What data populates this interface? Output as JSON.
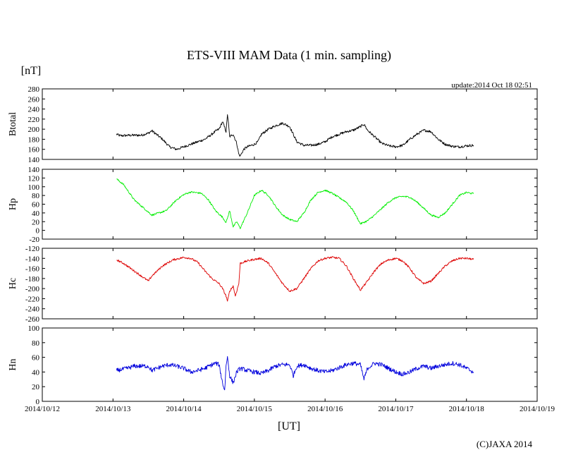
{
  "title": "ETS-VIII MAM Data (1 min. sampling)",
  "unit_label": "[nT]",
  "update_text": "update:2014 Oct 18 02:51",
  "xlabel": "[UT]",
  "copyright": "(C)JAXA 2014",
  "chart_data": [
    {
      "type": "line",
      "ylabel": "Btotal",
      "color": "#000000",
      "ylim": [
        140,
        280
      ],
      "yticks": [
        140,
        160,
        180,
        200,
        220,
        240,
        260,
        280
      ],
      "xlim": [
        0,
        7
      ],
      "xtick_labels": [
        "2014/10/12",
        "2014/10/13",
        "2014/10/14",
        "2014/10/15",
        "2014/10/16",
        "2014/10/17",
        "2014/10/18",
        "2014/10/19"
      ],
      "noise": 2.5,
      "x": [
        1.05,
        1.1,
        1.25,
        1.4,
        1.5,
        1.55,
        1.7,
        1.8,
        1.9,
        2.0,
        2.1,
        2.2,
        2.3,
        2.4,
        2.45,
        2.5,
        2.55,
        2.6,
        2.62,
        2.65,
        2.7,
        2.75,
        2.78,
        2.8,
        2.85,
        2.9,
        3.0,
        3.05,
        3.1,
        3.2,
        3.3,
        3.4,
        3.5,
        3.6,
        3.7,
        3.8,
        3.9,
        4.0,
        4.1,
        4.2,
        4.3,
        4.4,
        4.5,
        4.55,
        4.6,
        4.7,
        4.8,
        4.9,
        5.0,
        5.1,
        5.2,
        5.3,
        5.4,
        5.5,
        5.6,
        5.7,
        5.8,
        5.9,
        6.0,
        6.1
      ],
      "values": [
        190,
        187,
        188,
        188,
        192,
        197,
        180,
        165,
        160,
        165,
        170,
        175,
        180,
        190,
        196,
        200,
        215,
        195,
        230,
        185,
        190,
        172,
        150,
        147,
        160,
        165,
        170,
        175,
        190,
        200,
        207,
        212,
        205,
        175,
        168,
        168,
        170,
        175,
        185,
        190,
        195,
        198,
        205,
        210,
        198,
        185,
        172,
        167,
        165,
        168,
        180,
        190,
        198,
        195,
        180,
        170,
        166,
        165,
        167,
        168
      ]
    },
    {
      "type": "line",
      "ylabel": "Hp",
      "color": "#00ee00",
      "ylim": [
        -20,
        140
      ],
      "yticks": [
        -20,
        0,
        20,
        40,
        60,
        80,
        100,
        120,
        140
      ],
      "xlim": [
        0,
        7
      ],
      "noise": 2,
      "x": [
        1.05,
        1.15,
        1.3,
        1.5,
        1.55,
        1.75,
        1.9,
        2.0,
        2.1,
        2.25,
        2.35,
        2.45,
        2.55,
        2.6,
        2.65,
        2.7,
        2.75,
        2.8,
        2.9,
        3.0,
        3.1,
        3.2,
        3.3,
        3.4,
        3.5,
        3.6,
        3.7,
        3.8,
        3.9,
        4.0,
        4.1,
        4.2,
        4.3,
        4.4,
        4.5,
        4.6,
        4.7,
        4.8,
        4.9,
        5.0,
        5.1,
        5.2,
        5.3,
        5.4,
        5.5,
        5.6,
        5.7,
        5.8,
        5.9,
        6.0,
        6.1
      ],
      "values": [
        118,
        105,
        70,
        42,
        35,
        45,
        70,
        82,
        88,
        85,
        70,
        45,
        30,
        18,
        45,
        8,
        20,
        5,
        40,
        80,
        92,
        80,
        55,
        35,
        25,
        20,
        40,
        70,
        87,
        92,
        85,
        75,
        65,
        45,
        15,
        22,
        35,
        50,
        65,
        75,
        78,
        76,
        65,
        50,
        35,
        30,
        40,
        60,
        80,
        87,
        84
      ]
    },
    {
      "type": "line",
      "ylabel": "Hc",
      "color": "#dd0000",
      "ylim": [
        -260,
        -120
      ],
      "yticks": [
        -260,
        -240,
        -220,
        -200,
        -180,
        -160,
        -140,
        -120
      ],
      "xlim": [
        0,
        7
      ],
      "noise": 2,
      "x": [
        1.05,
        1.15,
        1.3,
        1.45,
        1.5,
        1.55,
        1.7,
        1.85,
        2.0,
        2.1,
        2.2,
        2.3,
        2.4,
        2.5,
        2.55,
        2.6,
        2.62,
        2.65,
        2.7,
        2.73,
        2.78,
        2.8,
        2.9,
        3.0,
        3.1,
        3.2,
        3.3,
        3.4,
        3.5,
        3.6,
        3.7,
        3.8,
        3.9,
        4.0,
        4.1,
        4.2,
        4.3,
        4.4,
        4.5,
        4.6,
        4.7,
        4.8,
        4.9,
        5.0,
        5.1,
        5.2,
        5.3,
        5.4,
        5.5,
        5.6,
        5.7,
        5.8,
        5.9,
        6.0,
        6.1
      ],
      "values": [
        -143,
        -150,
        -165,
        -180,
        -185,
        -175,
        -155,
        -143,
        -138,
        -140,
        -148,
        -165,
        -180,
        -190,
        -200,
        -215,
        -225,
        -205,
        -195,
        -215,
        -190,
        -150,
        -145,
        -142,
        -140,
        -150,
        -170,
        -190,
        -205,
        -200,
        -180,
        -160,
        -145,
        -140,
        -138,
        -140,
        -155,
        -180,
        -203,
        -185,
        -165,
        -150,
        -143,
        -140,
        -145,
        -160,
        -180,
        -190,
        -185,
        -170,
        -155,
        -145,
        -140,
        -140,
        -142
      ]
    },
    {
      "type": "line",
      "ylabel": "Hn",
      "color": "#0000dd",
      "ylim": [
        0,
        100
      ],
      "yticks": [
        0,
        20,
        40,
        60,
        80,
        100
      ],
      "xlim": [
        0,
        7
      ],
      "noise": 3,
      "x": [
        1.05,
        1.2,
        1.3,
        1.5,
        1.55,
        1.7,
        1.8,
        1.9,
        2.0,
        2.1,
        2.2,
        2.3,
        2.4,
        2.45,
        2.5,
        2.55,
        2.58,
        2.6,
        2.62,
        2.65,
        2.7,
        2.75,
        2.8,
        2.9,
        3.0,
        3.1,
        3.2,
        3.3,
        3.4,
        3.5,
        3.55,
        3.6,
        3.7,
        3.8,
        3.9,
        4.0,
        4.1,
        4.2,
        4.3,
        4.4,
        4.5,
        4.55,
        4.6,
        4.7,
        4.8,
        4.9,
        5.0,
        5.1,
        5.2,
        5.3,
        5.4,
        5.5,
        5.6,
        5.7,
        5.8,
        5.9,
        6.0,
        6.1
      ],
      "values": [
        42,
        45,
        48,
        48,
        42,
        48,
        50,
        48,
        45,
        40,
        42,
        45,
        50,
        52,
        50,
        25,
        15,
        50,
        60,
        35,
        25,
        40,
        45,
        42,
        40,
        38,
        42,
        48,
        50,
        50,
        35,
        48,
        50,
        45,
        42,
        40,
        42,
        46,
        50,
        52,
        50,
        30,
        45,
        52,
        50,
        45,
        40,
        37,
        40,
        45,
        48,
        45,
        48,
        50,
        52,
        50,
        45,
        40
      ]
    }
  ]
}
